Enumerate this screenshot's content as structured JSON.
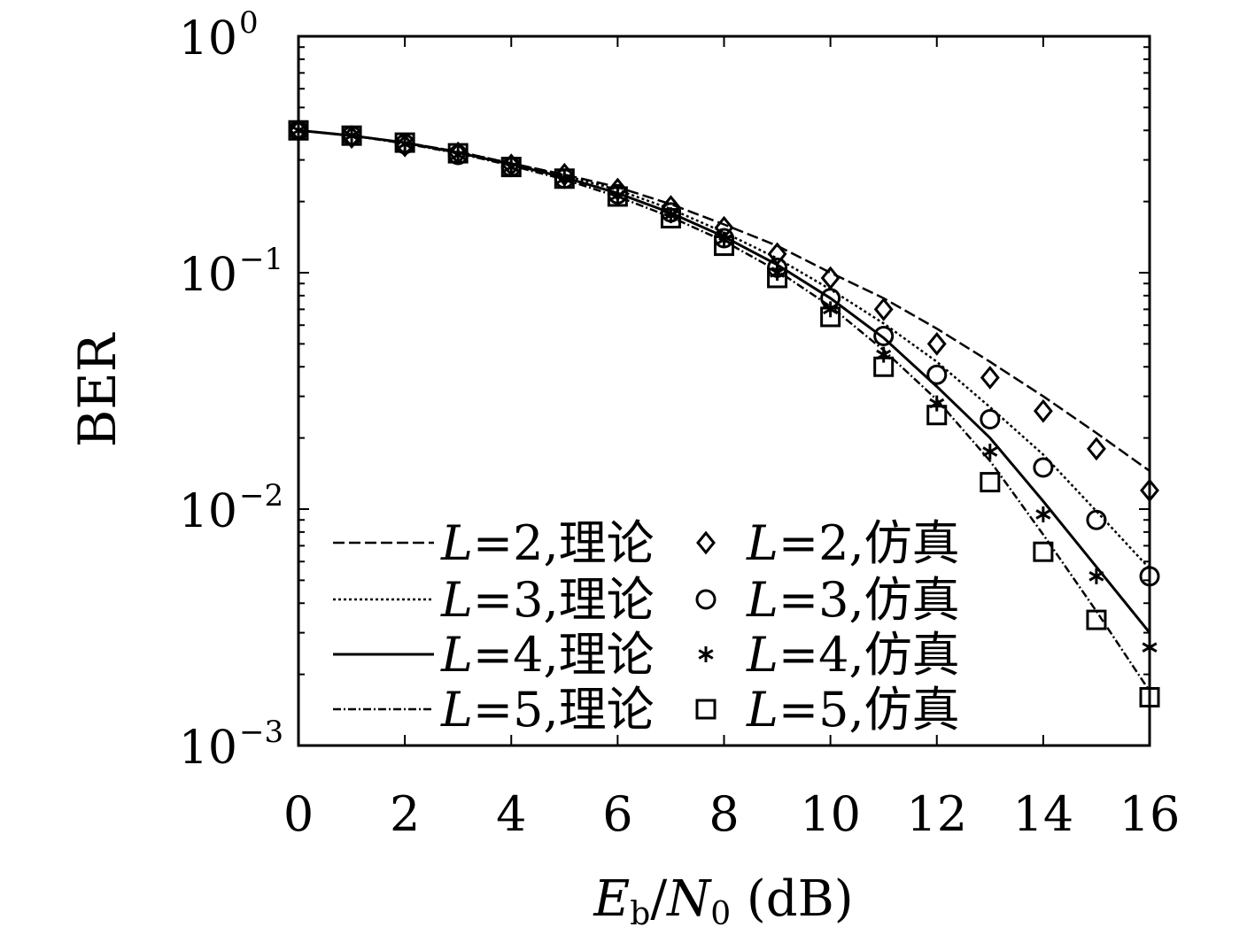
{
  "chart_data": {
    "type": "line",
    "xlabel": {
      "E": "E",
      "b": "b",
      "slash": "/",
      "N": "N",
      "zero": "0",
      "unit": " (dB)"
    },
    "ylabel": "BER",
    "xlim": [
      0,
      16
    ],
    "ylim": [
      0.001,
      1
    ],
    "yscale": "log",
    "xticks": [
      0,
      2,
      4,
      6,
      8,
      10,
      12,
      14,
      16
    ],
    "xtick_labels": [
      "0",
      "2",
      "4",
      "6",
      "8",
      "10",
      "12",
      "14",
      "16"
    ],
    "yticks": [
      {
        "value": 1,
        "base": "10",
        "exp": "0"
      },
      {
        "value": 0.1,
        "base": "10",
        "exp": "−1"
      },
      {
        "value": 0.01,
        "base": "10",
        "exp": "−2"
      },
      {
        "value": 0.001,
        "base": "10",
        "exp": "−3"
      }
    ],
    "grid": false,
    "legend_position": "bottom-left",
    "theory_x": [
      0,
      1,
      2,
      3,
      4,
      5,
      6,
      7,
      8,
      9,
      10,
      11,
      12,
      13,
      14,
      15,
      16
    ],
    "sim_x": [
      0,
      1,
      2,
      3,
      4,
      5,
      6,
      7,
      8,
      9,
      10,
      11,
      12,
      13,
      14,
      15,
      16
    ],
    "series": [
      {
        "name": "L=2,理论",
        "L": "L",
        "eq": "=2,理论",
        "kind": "theory",
        "dash": "13,5",
        "values": [
          0.4,
          0.38,
          0.355,
          0.325,
          0.29,
          0.26,
          0.23,
          0.195,
          0.16,
          0.13,
          0.1,
          0.078,
          0.058,
          0.042,
          0.03,
          0.021,
          0.0145
        ]
      },
      {
        "name": "L=3,理论",
        "L": "L",
        "eq": "=3,理论",
        "kind": "theory",
        "dash": "3,3",
        "values": [
          0.4,
          0.38,
          0.355,
          0.325,
          0.29,
          0.258,
          0.224,
          0.186,
          0.148,
          0.115,
          0.085,
          0.061,
          0.042,
          0.027,
          0.017,
          0.0098,
          0.0056
        ]
      },
      {
        "name": "L=4,理论",
        "L": "L",
        "eq": "=4,理论",
        "kind": "theory",
        "dash": "",
        "values": [
          0.4,
          0.38,
          0.355,
          0.322,
          0.287,
          0.253,
          0.217,
          0.179,
          0.142,
          0.108,
          0.078,
          0.053,
          0.033,
          0.02,
          0.0108,
          0.0057,
          0.003
        ]
      },
      {
        "name": "L=5,理论",
        "L": "L",
        "eq": "=5,理论",
        "kind": "theory",
        "dash": "9,3,2,3",
        "values": [
          0.4,
          0.38,
          0.352,
          0.32,
          0.284,
          0.248,
          0.21,
          0.172,
          0.136,
          0.102,
          0.072,
          0.047,
          0.029,
          0.016,
          0.0078,
          0.0037,
          0.0017
        ]
      },
      {
        "name": "L=2,仿真",
        "L": "L",
        "eq": "=2,仿真",
        "kind": "sim",
        "marker": "diamond",
        "values": [
          0.4,
          0.375,
          0.345,
          0.32,
          0.285,
          0.26,
          0.225,
          0.19,
          0.155,
          0.12,
          0.095,
          0.07,
          0.05,
          0.036,
          0.026,
          0.018,
          0.012
        ]
      },
      {
        "name": "L=3,仿真",
        "L": "L",
        "eq": "=3,仿真",
        "kind": "sim",
        "marker": "circle",
        "values": [
          0.4,
          0.38,
          0.35,
          0.315,
          0.28,
          0.25,
          0.215,
          0.18,
          0.14,
          0.105,
          0.078,
          0.054,
          0.037,
          0.024,
          0.015,
          0.009,
          0.0052
        ]
      },
      {
        "name": "L=4,仿真",
        "L": "L",
        "eq": "=4,仿真",
        "kind": "sim",
        "marker": "star",
        "values": [
          0.4,
          0.38,
          0.35,
          0.315,
          0.28,
          0.25,
          0.212,
          0.175,
          0.138,
          0.1,
          0.07,
          0.045,
          0.028,
          0.0175,
          0.0095,
          0.0052,
          0.0026
        ]
      },
      {
        "name": "L=5,仿真",
        "L": "L",
        "eq": "=5,仿真",
        "kind": "sim",
        "marker": "square",
        "values": [
          0.4,
          0.38,
          0.355,
          0.32,
          0.28,
          0.25,
          0.21,
          0.17,
          0.13,
          0.095,
          0.065,
          0.04,
          0.025,
          0.013,
          0.0066,
          0.0034,
          0.0016
        ]
      }
    ],
    "colors": {
      "ink": "#000000",
      "background": "#ffffff"
    }
  }
}
